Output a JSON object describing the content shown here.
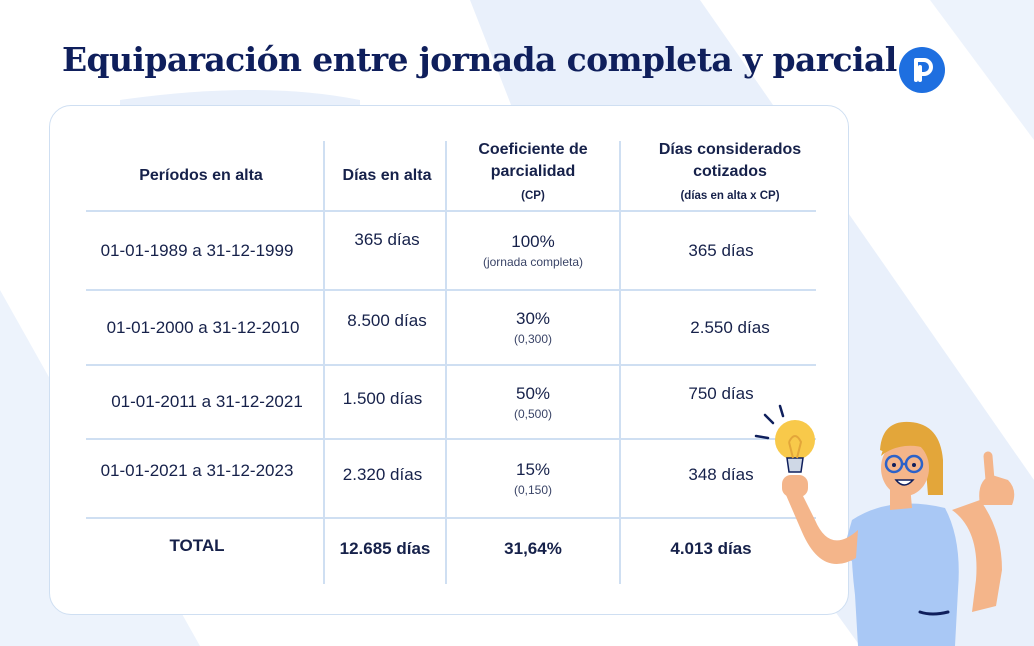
{
  "title": "Equiparación entre jornada completa y parcial",
  "logo": {
    "letter": "P",
    "icon": "p-logo-icon",
    "color": "#1e6fe0"
  },
  "colors": {
    "title": "#0f1f5c",
    "border": "#cfdff2",
    "background_shape": "#e6eefa"
  },
  "table": {
    "headers": {
      "period": "Períodos en alta",
      "days": "Días en alta",
      "coef": "Coeficiente de parcialidad",
      "coef_sub": "(CP)",
      "considered": "Días considerados cotizados",
      "considered_sub": "(días en alta x CP)"
    },
    "rows": [
      {
        "period": "01-01-1989 a 31-12-1999",
        "days": "365 días",
        "coef": "100%",
        "coef_note": "(jornada completa)",
        "considered": "365 días"
      },
      {
        "period": "01-01-2000 a 31-12-2010",
        "days": "8.500 días",
        "coef": "30%",
        "coef_note": "(0,300)",
        "considered": "2.550 días"
      },
      {
        "period": "01-01-2011 a 31-12-2021",
        "days": "1.500 días",
        "coef": "50%",
        "coef_note": "(0,500)",
        "considered": "750 días"
      },
      {
        "period": "01-01-2021 a 31-12-2023",
        "days": "2.320 días",
        "coef": "15%",
        "coef_note": "(0,150)",
        "considered": "348 días"
      }
    ],
    "total": {
      "label": "TOTAL",
      "days": "12.685 días",
      "coef": "31,64%",
      "considered": "4.013 días"
    }
  },
  "illustration": {
    "icon": "woman-with-lightbulb-icon"
  }
}
